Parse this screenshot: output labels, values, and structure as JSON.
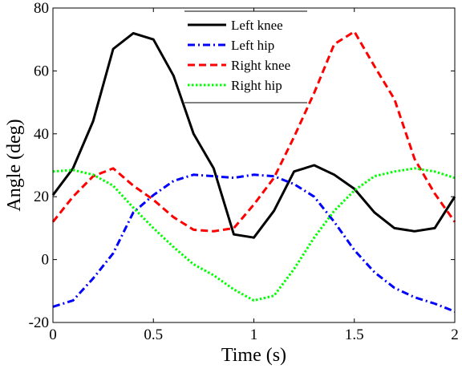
{
  "chart_data": {
    "type": "line",
    "title": "",
    "xlabel": "Time (s)",
    "ylabel": "Angle (deg)",
    "xlim": [
      0,
      2
    ],
    "ylim": [
      -20,
      80
    ],
    "xticks": [
      0,
      0.5,
      1,
      1.5,
      2
    ],
    "xtick_labels": [
      "0",
      "0.5",
      "1",
      "1.5",
      "2"
    ],
    "yticks": [
      -20,
      0,
      20,
      40,
      60,
      80
    ],
    "ytick_labels": [
      "-20",
      "0",
      "20",
      "40",
      "60",
      "80"
    ],
    "grid": false,
    "legend_position": "top-center",
    "x": [
      0,
      0.1,
      0.2,
      0.3,
      0.4,
      0.5,
      0.6,
      0.7,
      0.8,
      0.9,
      1.0,
      1.1,
      1.2,
      1.3,
      1.4,
      1.5,
      1.6,
      1.7,
      1.8,
      1.9,
      2.0
    ],
    "series": [
      {
        "name": "Left knee",
        "color": "#000000",
        "style": "solid",
        "values": [
          20.5,
          29,
          44,
          67,
          72,
          70,
          58.5,
          40,
          29,
          8,
          7,
          15.5,
          28,
          30,
          27,
          22.5,
          15,
          10,
          9,
          10,
          20
        ]
      },
      {
        "name": "Left hip",
        "color": "#0000ff",
        "style": "dashdot",
        "values": [
          -15,
          -13,
          -6,
          2,
          15,
          20.5,
          25,
          27,
          26.5,
          26,
          27,
          26.5,
          24,
          20,
          12,
          3,
          -4,
          -9,
          -12,
          -14,
          -16.5
        ]
      },
      {
        "name": "Right knee",
        "color": "#ff0000",
        "style": "dashed",
        "values": [
          12,
          20,
          26.5,
          29,
          23.5,
          19,
          13.5,
          9.5,
          9,
          10,
          17.5,
          26,
          39,
          53,
          68.5,
          72.5,
          61.5,
          51,
          32,
          21,
          12
        ]
      },
      {
        "name": "Right hip",
        "color": "#00ff00",
        "style": "dotted",
        "values": [
          28,
          28.5,
          27,
          23.5,
          16.5,
          10,
          4,
          -1.5,
          -5,
          -9.5,
          -13,
          -11.5,
          -3,
          7,
          15.5,
          22,
          26.5,
          28,
          29,
          28,
          26
        ]
      }
    ]
  }
}
